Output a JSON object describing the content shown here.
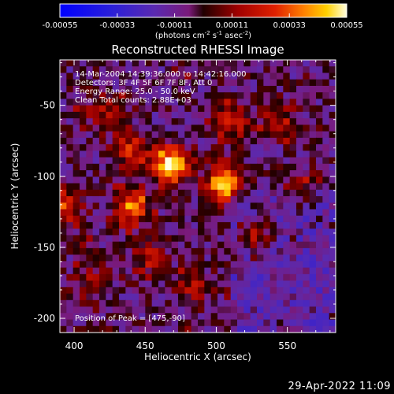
{
  "chart_data": {
    "type": "heatmap",
    "title": "Reconstructed RHESSI Image",
    "xlabel": "Heliocentric X (arcsec)",
    "ylabel": "Heliocentric Y (arcsec)",
    "xlim": [
      390,
      584
    ],
    "ylim": [
      -210,
      -18
    ],
    "x_ticks": [
      400,
      450,
      500,
      550
    ],
    "y_ticks": [
      -50,
      -100,
      -150,
      -200
    ],
    "colorbar": {
      "range": [
        -0.00055,
        0.00055
      ],
      "ticks": [
        "-0.00055",
        "-0.00033",
        "-0.00011",
        "0.00011",
        "0.00033",
        "0.00055"
      ],
      "unit_base": "(photons cm",
      "unit_sup1": "-2",
      "unit_mid": " s",
      "unit_sup2": "-1",
      "unit_mid2": " asec",
      "unit_sup3": "-2",
      "unit_end": ")"
    },
    "info_lines": [
      "14-Mar-2004 14:39:36.000 to 14:42:16.000",
      "Detectors: 3F 4F 5F 6F 7F 8F, Att 0",
      "Energy Range: 25.0 - 50.0 keV",
      "Clean    Total counts: 2.88E+03"
    ],
    "peak_label": "Position of Peak = [475,-90]",
    "peaks": [
      {
        "x": 468,
        "y": -92,
        "amp": 1.0
      },
      {
        "x": 505,
        "y": -105,
        "amp": 0.85
      },
      {
        "x": 440,
        "y": -122,
        "amp": 0.7
      },
      {
        "x": 392,
        "y": -122,
        "amp": 0.55
      },
      {
        "x": 508,
        "y": -62,
        "amp": 0.55
      },
      {
        "x": 440,
        "y": -80,
        "amp": 0.45
      },
      {
        "x": 528,
        "y": -140,
        "amp": 0.45
      },
      {
        "x": 452,
        "y": -158,
        "amp": 0.35
      },
      {
        "x": 545,
        "y": -60,
        "amp": 0.35
      },
      {
        "x": 420,
        "y": -55,
        "amp": 0.3
      },
      {
        "x": 485,
        "y": -178,
        "amp": 0.3
      },
      {
        "x": 412,
        "y": -175,
        "amp": 0.3
      },
      {
        "x": 560,
        "y": -110,
        "amp": 0.3
      }
    ]
  },
  "footer": {
    "date": "29-Apr-2022 11:09"
  }
}
